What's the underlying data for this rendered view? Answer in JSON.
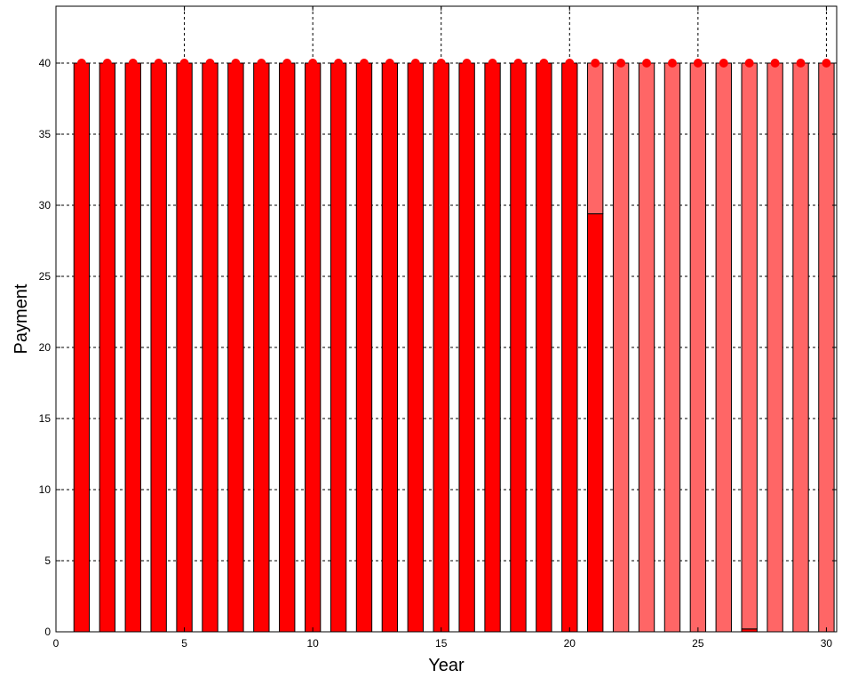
{
  "chart_data": {
    "type": "bar",
    "title": "",
    "xlabel": "Year",
    "ylabel": "Payment",
    "xlim": [
      0,
      30.4
    ],
    "ylim": [
      0,
      44
    ],
    "xticks": [
      0,
      5,
      10,
      15,
      20,
      25,
      30
    ],
    "yticks": [
      0,
      5,
      10,
      15,
      20,
      25,
      30,
      35,
      40
    ],
    "grid": true,
    "stacked": true,
    "x": [
      1,
      2,
      3,
      4,
      5,
      6,
      7,
      8,
      9,
      10,
      11,
      12,
      13,
      14,
      15,
      16,
      17,
      18,
      19,
      20,
      21,
      22,
      23,
      24,
      25,
      26,
      27,
      28,
      29,
      30
    ],
    "series": [
      {
        "color": "#ff0000",
        "values": [
          40,
          40,
          40,
          40,
          40,
          40,
          40,
          40,
          40,
          40,
          40,
          40,
          40,
          40,
          40,
          40,
          40,
          40,
          40,
          40,
          29.4,
          0,
          0,
          0,
          0,
          0,
          0.2,
          0,
          0,
          0
        ]
      },
      {
        "color": "#ff6666",
        "values": [
          0,
          0,
          0,
          0,
          0,
          0,
          0,
          0,
          0,
          0,
          0,
          0,
          0,
          0,
          0,
          0,
          0,
          0,
          0,
          0,
          10.6,
          40,
          40,
          40,
          40,
          40,
          39.8,
          40,
          40,
          40
        ]
      }
    ],
    "markers": {
      "color": "#ff0000",
      "values": [
        40,
        40,
        40,
        40,
        40,
        40,
        40,
        40,
        40,
        40,
        40,
        40,
        40,
        40,
        40,
        40,
        40,
        40,
        40,
        40,
        40,
        40,
        40,
        40,
        40,
        40,
        40,
        40,
        40,
        40
      ]
    }
  }
}
